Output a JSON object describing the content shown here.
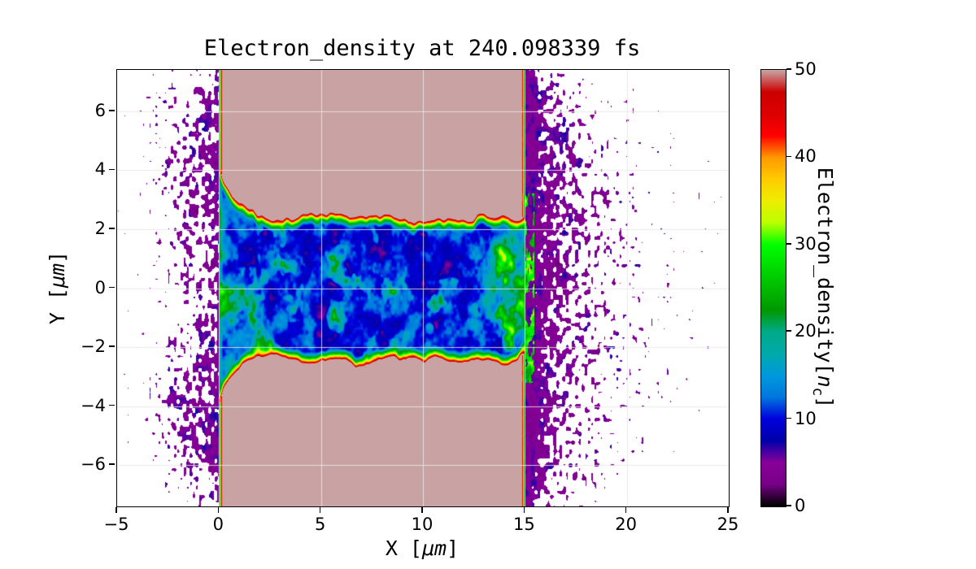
{
  "figure": {
    "background": "#ffffff"
  },
  "chart_data": {
    "type": "heatmap",
    "title": "Electron_density at 240.098339 fs",
    "time_fs": 240.098339,
    "xlabel": "X [μm]",
    "xlabel_parts": {
      "prefix": "X [",
      "unit": "μm",
      "suffix": "]"
    },
    "ylabel": "Y [μm]",
    "ylabel_parts": {
      "prefix": "Y [",
      "unit": "μm",
      "suffix": "]"
    },
    "xlim": [
      -5,
      25
    ],
    "ylim": [
      -7.4,
      7.4
    ],
    "xticks": [
      -5,
      0,
      5,
      10,
      15,
      20,
      25
    ],
    "yticks": [
      -6,
      -4,
      -2,
      0,
      2,
      4,
      6
    ],
    "grid": true,
    "grid_color": "#e8e8e8",
    "colormap": "nipy_spectral",
    "value_range": [
      0,
      50
    ],
    "colormap_stops": [
      [
        0.0,
        0,
        0,
        0
      ],
      [
        0.05,
        119,
        0,
        136
      ],
      [
        0.1,
        136,
        0,
        153
      ],
      [
        0.15,
        0,
        0,
        170
      ],
      [
        0.2,
        0,
        0,
        221
      ],
      [
        0.25,
        0,
        119,
        221
      ],
      [
        0.3,
        0,
        153,
        221
      ],
      [
        0.35,
        0,
        170,
        170
      ],
      [
        0.4,
        0,
        170,
        136
      ],
      [
        0.45,
        0,
        153,
        0
      ],
      [
        0.5,
        0,
        187,
        0
      ],
      [
        0.55,
        0,
        221,
        0
      ],
      [
        0.6,
        0,
        255,
        0
      ],
      [
        0.65,
        187,
        255,
        0
      ],
      [
        0.7,
        238,
        238,
        0
      ],
      [
        0.75,
        255,
        204,
        0
      ],
      [
        0.8,
        255,
        153,
        0
      ],
      [
        0.85,
        255,
        0,
        0
      ],
      [
        0.9,
        221,
        0,
        0
      ],
      [
        0.95,
        204,
        0,
        0
      ],
      [
        1.0,
        201,
        163,
        163
      ]
    ],
    "colorbar": {
      "ticks": [
        0,
        10,
        20,
        30,
        40,
        50
      ],
      "range": [
        0,
        50
      ],
      "label": "Electron_density[nc]",
      "label_parts": {
        "prefix": "Electron_density[",
        "var": "n",
        "sub": "c",
        "suffix": "]"
      }
    },
    "features": {
      "target_slab_x_um": [
        0,
        15
      ],
      "slab_saturated_density_nc": 50,
      "channel_center_y_um": 0,
      "channel_half_width_um": 2.5,
      "channel_density_range_nc": [
        3,
        18
      ],
      "channel_wall_sheath_density_nc": [
        20,
        48
      ],
      "front_flare_half_width_um": 4,
      "hotspot": {
        "x_um": 14.1,
        "y_um": 0.2,
        "peak_nc": 38
      },
      "blowoff_plasma": "scattered low-density (1-8 nc) electron specks for x<0 and 15<x<23, densest just behind x=15 and near the front surface"
    }
  }
}
